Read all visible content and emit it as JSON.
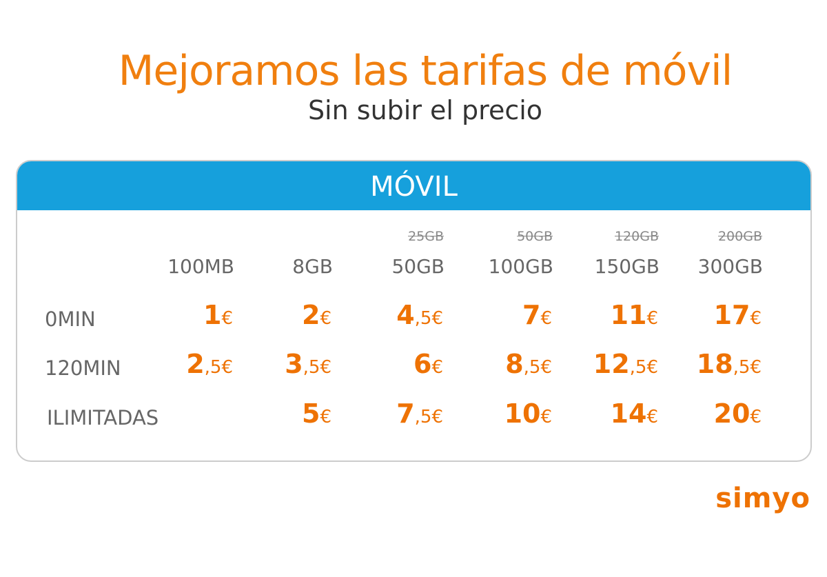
{
  "header": {
    "title": "Mejoramos las tarifas de móvil",
    "subtitle": "Sin subir el precio"
  },
  "table": {
    "title": "MÓVIL",
    "old_columns": [
      null,
      null,
      "25GB",
      "50GB",
      "120GB",
      "200GB"
    ],
    "columns": [
      "100MB",
      "8GB",
      "50GB",
      "100GB",
      "150GB",
      "300GB"
    ],
    "rows": [
      {
        "label": "0MIN",
        "prices": [
          "1€",
          "2€",
          "4,5€",
          "7€",
          "11€",
          "17€"
        ]
      },
      {
        "label": "120MIN",
        "prices": [
          "2,5€",
          "3,5€",
          "6€",
          "8,5€",
          "12,5€",
          "18,5€"
        ]
      },
      {
        "label": "ILIMITADAS",
        "prices": [
          null,
          "5€",
          "7,5€",
          "10€",
          "14€",
          "20€"
        ]
      }
    ]
  },
  "logo": "simyo"
}
